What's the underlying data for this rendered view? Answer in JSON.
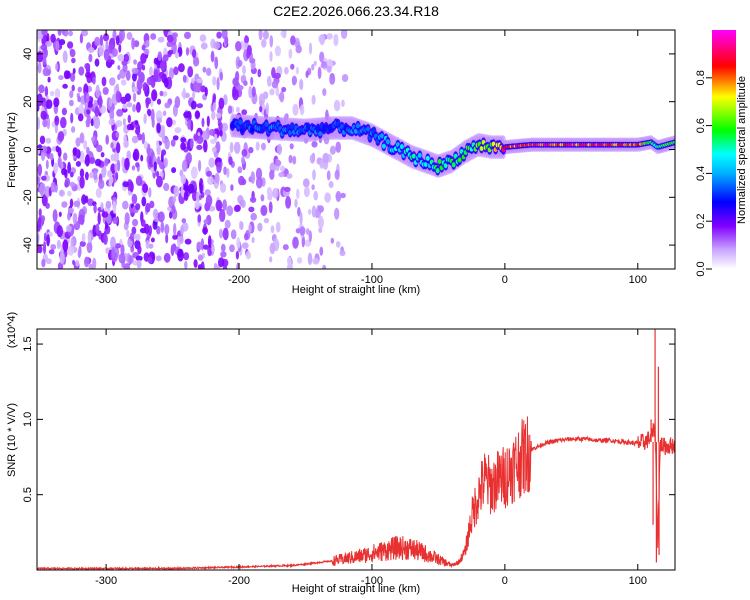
{
  "title": "C2E2.2026.066.23.34.R18",
  "chart_data": [
    {
      "type": "heatmap",
      "name": "spectrogram",
      "xlabel": "Height of straight line (km)",
      "ylabel": "Frequency (Hz)",
      "xlim": [
        -352,
        128
      ],
      "ylim": [
        -50,
        50
      ],
      "x_ticks": [
        -300,
        -200,
        -100,
        0,
        100
      ],
      "x_tick_labels": [
        "-300",
        "-200",
        "-100",
        "0",
        "100"
      ],
      "y_ticks": [
        40,
        20,
        0,
        -20,
        -40
      ],
      "y_tick_labels": [
        "40",
        "20",
        "0",
        "-20",
        "-40"
      ],
      "colorbar": {
        "label": "Normalized spectral amplitude",
        "range": [
          0,
          1
        ],
        "ticks": [
          0.0,
          0.2,
          0.4,
          0.6,
          0.8
        ],
        "tick_labels": [
          "0.0",
          "0.2",
          "0.4",
          "0.6",
          "0.8"
        ],
        "colors": [
          "#ffffff",
          "#8000ff",
          "#0000ff",
          "#00ffff",
          "#00ff00",
          "#ffff00",
          "#ff0000",
          "#ff00ff"
        ]
      },
      "trace": {
        "x": [
          -205,
          -180,
          -150,
          -130,
          -115,
          -100,
          -90,
          -80,
          -70,
          -60,
          -50,
          -40,
          -30,
          -20,
          -10,
          0,
          20,
          50,
          80,
          100,
          110,
          115,
          128
        ],
        "y": [
          10,
          9,
          8,
          9,
          9,
          6,
          3,
          0,
          -3,
          -5,
          -7,
          -5,
          -1,
          2,
          1,
          1,
          2,
          2,
          2,
          2,
          3,
          1,
          3
        ],
        "amplitude": [
          0.3,
          0.35,
          0.35,
          0.3,
          0.35,
          0.35,
          0.4,
          0.45,
          0.5,
          0.45,
          0.55,
          0.5,
          0.55,
          0.6,
          0.6,
          0.85,
          0.85,
          0.85,
          0.8,
          0.8,
          0.6,
          0.5,
          0.6
        ]
      },
      "noise_region_x": [
        -352,
        -140
      ],
      "noise_amplitude": [
        0.05,
        0.2
      ]
    },
    {
      "type": "line",
      "name": "snr",
      "xlabel": "Height of straight line (km)",
      "ylabel": "SNR (10 * V/V)",
      "y_multiplier_label": "(x10^4)",
      "xlim": [
        -352,
        128
      ],
      "ylim": [
        0,
        1.6
      ],
      "x_ticks": [
        -300,
        -200,
        -100,
        0,
        100
      ],
      "x_tick_labels": [
        "-300",
        "-200",
        "-100",
        "0",
        "100"
      ],
      "y_ticks": [
        0.5,
        1.0,
        1.5
      ],
      "y_tick_labels": [
        "0.5",
        "1.0",
        "1.5"
      ],
      "color": "#e83030",
      "x": [
        -352,
        -300,
        -250,
        -200,
        -160,
        -130,
        -110,
        -100,
        -90,
        -80,
        -70,
        -60,
        -50,
        -40,
        -35,
        -30,
        -25,
        -20,
        -15,
        -10,
        -5,
        0,
        10,
        20,
        30,
        40,
        50,
        60,
        70,
        80,
        90,
        100,
        105,
        110,
        113,
        115,
        117,
        120,
        128
      ],
      "y": [
        0.01,
        0.01,
        0.01,
        0.02,
        0.03,
        0.06,
        0.09,
        0.11,
        0.13,
        0.15,
        0.14,
        0.11,
        0.07,
        0.03,
        0.05,
        0.12,
        0.35,
        0.5,
        0.6,
        0.55,
        0.6,
        0.62,
        0.72,
        0.8,
        0.84,
        0.86,
        0.87,
        0.87,
        0.86,
        0.86,
        0.85,
        0.84,
        0.85,
        0.88,
        0.95,
        0.2,
        0.84,
        0.82,
        0.83
      ]
    }
  ]
}
